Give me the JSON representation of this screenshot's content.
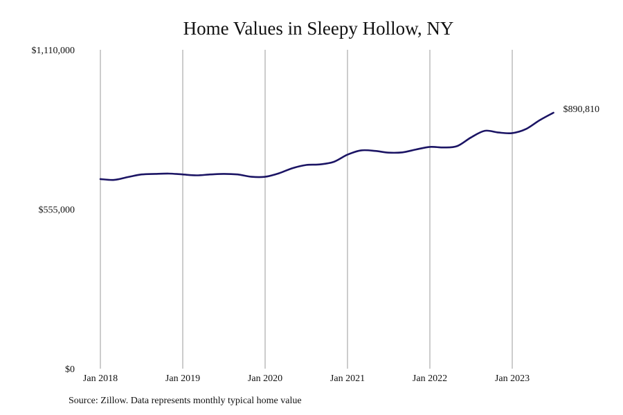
{
  "chart_data": {
    "type": "line",
    "title": "Home Values in Sleepy Hollow, NY",
    "xlabel": "",
    "ylabel": "",
    "ylim": [
      0,
      1110000
    ],
    "y_ticks": [
      "$0",
      "$555,000",
      "$1,110,000"
    ],
    "x_ticks": [
      "Jan 2018",
      "Jan 2019",
      "Jan 2020",
      "Jan 2021",
      "Jan 2022",
      "Jan 2023"
    ],
    "x_range": [
      "2018-01",
      "2023-12"
    ],
    "grid": "vertical lines at January of each year",
    "end_label": "$890,810",
    "series": [
      {
        "values": [
          {
            "x": "2018-01",
            "y": 660000
          },
          {
            "x": "2018-03",
            "y": 657000
          },
          {
            "x": "2018-05",
            "y": 667000
          },
          {
            "x": "2018-07",
            "y": 676000
          },
          {
            "x": "2018-09",
            "y": 678000
          },
          {
            "x": "2018-11",
            "y": 679000
          },
          {
            "x": "2019-01",
            "y": 676000
          },
          {
            "x": "2019-03",
            "y": 673000
          },
          {
            "x": "2019-05",
            "y": 676000
          },
          {
            "x": "2019-07",
            "y": 678000
          },
          {
            "x": "2019-09",
            "y": 676000
          },
          {
            "x": "2019-11",
            "y": 668000
          },
          {
            "x": "2020-01",
            "y": 668000
          },
          {
            "x": "2020-03",
            "y": 680000
          },
          {
            "x": "2020-05",
            "y": 698000
          },
          {
            "x": "2020-07",
            "y": 709000
          },
          {
            "x": "2020-09",
            "y": 711000
          },
          {
            "x": "2020-11",
            "y": 720000
          },
          {
            "x": "2021-01",
            "y": 745000
          },
          {
            "x": "2021-03",
            "y": 760000
          },
          {
            "x": "2021-05",
            "y": 758000
          },
          {
            "x": "2021-07",
            "y": 752000
          },
          {
            "x": "2021-09",
            "y": 753000
          },
          {
            "x": "2021-11",
            "y": 763000
          },
          {
            "x": "2022-01",
            "y": 772000
          },
          {
            "x": "2022-03",
            "y": 770000
          },
          {
            "x": "2022-05",
            "y": 775000
          },
          {
            "x": "2022-07",
            "y": 805000
          },
          {
            "x": "2022-09",
            "y": 828000
          },
          {
            "x": "2022-11",
            "y": 822000
          },
          {
            "x": "2023-01",
            "y": 820000
          },
          {
            "x": "2023-03",
            "y": 834000
          },
          {
            "x": "2023-05",
            "y": 865000
          },
          {
            "x": "2023-07",
            "y": 890810
          }
        ]
      }
    ],
    "colors": {
      "line": "#1b1464",
      "grid": "#9a9a9a",
      "text": "#111111"
    }
  },
  "source_note": "Source: Zillow. Data represents monthly typical home value"
}
